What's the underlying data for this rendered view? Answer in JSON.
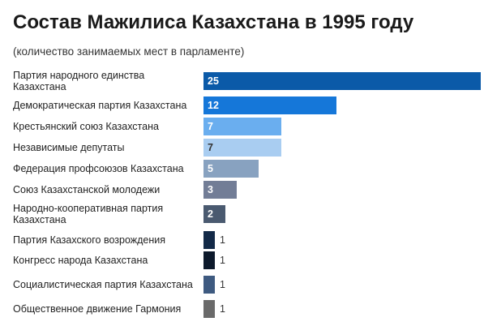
{
  "title": "Состав Мажилиса Казахстана в 1995 году",
  "subtitle": "(количество занимаемых мест в парламенте)",
  "chart_data": {
    "type": "bar",
    "orientation": "horizontal",
    "title": "Состав Мажилиса Казахстана в 1995 году",
    "subtitle": "(количество занимаемых мест в парламенте)",
    "xlim": [
      0,
      25
    ],
    "grid": false,
    "legend": "none",
    "categories": [
      "Партия народного единства Казахстана",
      "Демократическая партия Казахстана",
      "Крестьянский союз Казахстана",
      "Независимые депутаты",
      "Федерация профсоюзов Казахстана",
      "Союз Казахстанской молодежи",
      "Народно-кооперативная партия Казахстана",
      "Партия Казахского возрождения",
      "Конгресс народа Казахстана",
      "Социалистическая партия Казахстана",
      "Общественное движение Гармония"
    ],
    "values": [
      25,
      12,
      7,
      7,
      5,
      3,
      2,
      1,
      1,
      1,
      1
    ],
    "value_labels": [
      "25",
      "12",
      "7",
      "7",
      "5",
      "3",
      "2",
      "1",
      "1",
      "1",
      "1"
    ],
    "colors": [
      "#0b5aa8",
      "#1577d9",
      "#6aaeef",
      "#a9cdf1",
      "#88a2c0",
      "#727d96",
      "#4a5a70",
      "#132a48",
      "#0d1a2c",
      "#3e5a80",
      "#6a6a6a"
    ],
    "label_colors": [
      "#ffffff",
      "#ffffff",
      "#ffffff",
      "#333333",
      "#ffffff",
      "#ffffff",
      "#ffffff",
      "#333333",
      "#333333",
      "#333333",
      "#333333"
    ]
  }
}
